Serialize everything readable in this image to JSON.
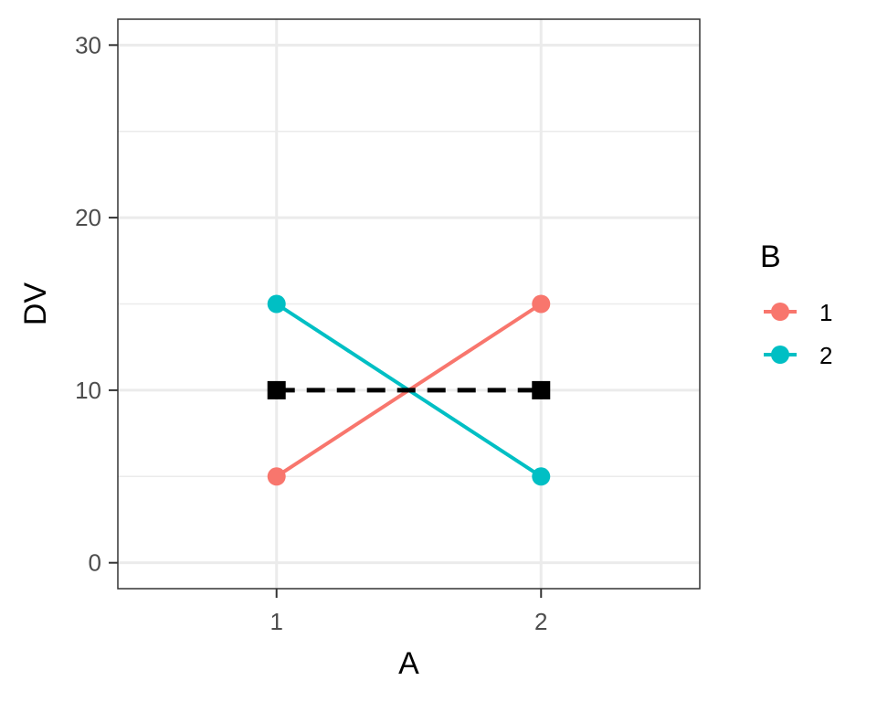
{
  "chart_data": {
    "type": "line",
    "xlabel": "A",
    "ylabel": "DV",
    "categories": [
      "1",
      "2"
    ],
    "ylim": [
      -1.5,
      31.5
    ],
    "y_ticks": [
      0,
      10,
      20,
      30
    ],
    "y_minor_ticks": [
      5,
      15,
      25
    ],
    "grid": true,
    "legend": {
      "title": "B",
      "position": "right"
    },
    "series": [
      {
        "name": "1",
        "values": [
          5,
          15
        ],
        "color": "#F8766D",
        "linestyle": "solid",
        "marker": "circle"
      },
      {
        "name": "2",
        "values": [
          15,
          5
        ],
        "color": "#00BFC4",
        "linestyle": "solid",
        "marker": "circle"
      },
      {
        "values": [
          10,
          10
        ],
        "color": "#000000",
        "linestyle": "dashed",
        "marker": "square",
        "in_legend": false
      }
    ]
  }
}
